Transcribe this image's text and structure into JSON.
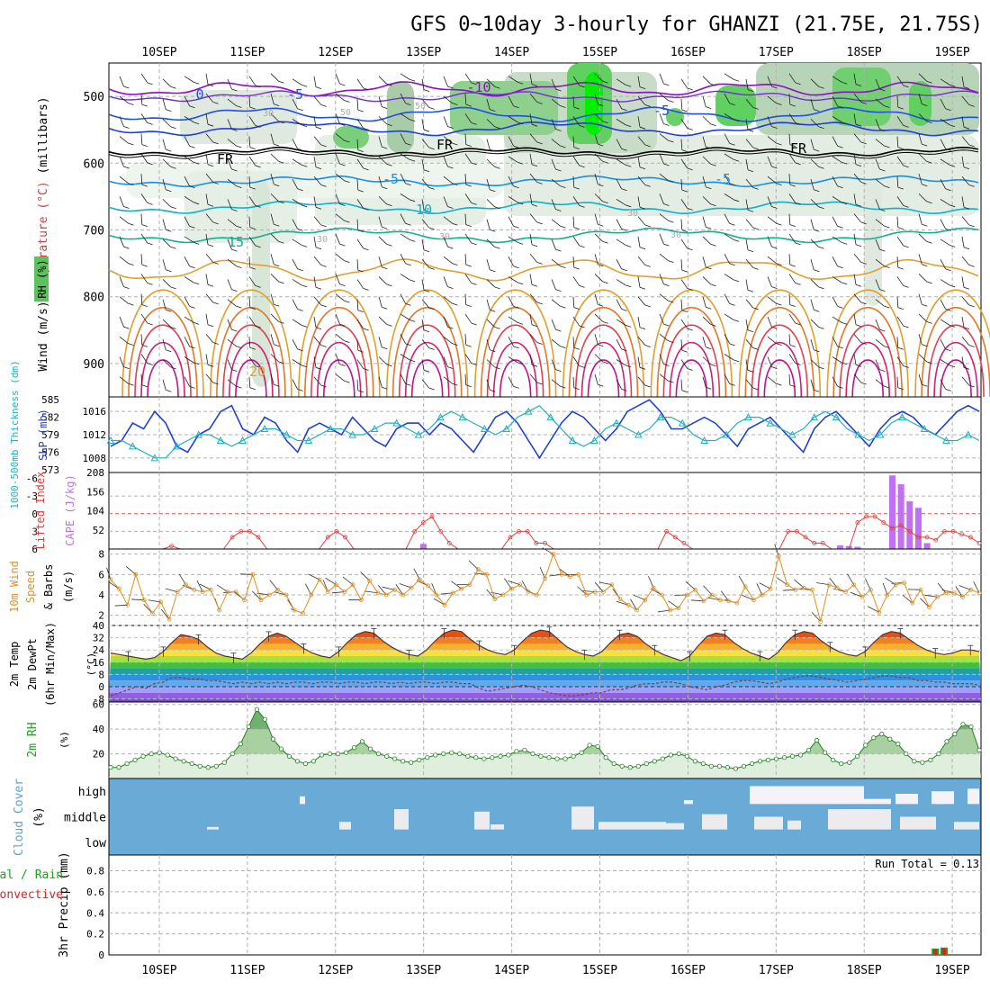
{
  "chart_data": [
    {
      "type": "contour",
      "panel": "upper-air",
      "title": "GFS 0~10day 3-hourly for GHANZI (21.75E, 21.75S)",
      "x_ticks": [
        "10SEP",
        "11SEP",
        "12SEP",
        "13SEP",
        "14SEP",
        "15SEP",
        "16SEP",
        "17SEP",
        "18SEP",
        "19SEP"
      ],
      "ylabel_parts": [
        {
          "text": "Wind (m/s)",
          "color": "#000000"
        },
        {
          "text": "Temperature (°C)",
          "color": "#d04040"
        },
        {
          "text": "(millibars)",
          "color": "#000000"
        }
      ],
      "rh_label": "RH (%)",
      "y_ticks": [
        500,
        600,
        700,
        800,
        900
      ],
      "ylim": [
        450,
        950
      ],
      "contour_labels": [
        "0",
        "-5",
        "-10",
        "-5",
        "FR",
        "FR",
        "FR",
        "-5",
        "-5",
        "10",
        "15",
        "20",
        "30",
        "30",
        "30",
        "30",
        "30",
        "50",
        "50"
      ]
    },
    {
      "type": "line",
      "panel": "thickness-slp",
      "ylabel_left": "1000-500mb Thickness (dm)",
      "ylabel_right": "SLP (mb)",
      "thickness_ticks": [
        585,
        582,
        579,
        576,
        573
      ],
      "slp_ticks": [
        1016,
        1012,
        1008
      ],
      "series": [
        {
          "name": "SLP (mb)",
          "color": "#2040d0",
          "values": [
            1010,
            1011,
            1014,
            1013,
            1016,
            1014,
            1010,
            1009,
            1012,
            1013,
            1016,
            1017,
            1013,
            1012,
            1015,
            1014,
            1011,
            1009,
            1013,
            1014,
            1013,
            1012,
            1015,
            1013,
            1011,
            1010,
            1013,
            1014,
            1014,
            1012,
            1014,
            1013,
            1011,
            1009,
            1012,
            1015,
            1016,
            1014,
            1011,
            1008,
            1011,
            1014,
            1016,
            1015,
            1013,
            1011,
            1013,
            1016,
            1017,
            1018,
            1016,
            1013,
            1013,
            1014,
            1015,
            1014,
            1012,
            1010,
            1013,
            1014,
            1015,
            1013,
            1011,
            1009,
            1013,
            1015,
            1016,
            1014,
            1012,
            1010,
            1013,
            1015,
            1016,
            1015,
            1013,
            1012,
            1014,
            1016,
            1017,
            1016
          ]
        },
        {
          "name": "Thickness (dm)",
          "color": "#20b0c0",
          "values": [
            578,
            578,
            577,
            576,
            575,
            575,
            577,
            578,
            579,
            579,
            578,
            577,
            578,
            579,
            580,
            580,
            579,
            578,
            578,
            579,
            580,
            580,
            579,
            579,
            580,
            581,
            581,
            580,
            579,
            580,
            582,
            583,
            582,
            581,
            580,
            579,
            580,
            582,
            583,
            584,
            582,
            580,
            578,
            577,
            578,
            580,
            581,
            580,
            579,
            580,
            582,
            582,
            581,
            579,
            578,
            578,
            579,
            581,
            582,
            582,
            581,
            580,
            579,
            580,
            582,
            583,
            582,
            580,
            579,
            578,
            579,
            581,
            582,
            581,
            580,
            579,
            578,
            578,
            579,
            578
          ]
        }
      ]
    },
    {
      "type": "bar-line",
      "panel": "lifted-index-cape",
      "ylabel_left": "Lifted Index",
      "ylabel_right": "CAPE (J/kg)",
      "li_ticks": [
        "-6",
        "-3",
        "0",
        "3",
        "6"
      ],
      "cape_ticks": [
        "208",
        "156",
        "104",
        "52"
      ],
      "li_values": [
        6,
        6,
        6,
        6,
        6,
        6,
        6,
        5.5,
        6,
        6,
        6,
        6,
        6,
        6,
        4,
        3,
        3,
        4,
        6,
        6,
        6,
        6,
        6,
        6,
        6,
        4,
        3,
        4,
        6,
        6,
        6,
        6,
        6,
        6,
        6,
        3,
        1.5,
        0.5,
        3,
        5,
        6,
        6,
        6,
        6,
        6,
        6,
        4,
        3,
        3,
        5,
        5,
        6,
        6,
        6,
        6,
        6,
        6,
        6,
        6,
        6,
        6,
        6,
        6,
        6,
        3,
        4,
        5,
        6,
        6,
        6,
        6,
        6,
        6,
        6,
        6,
        6,
        6,
        6,
        3,
        3,
        4,
        5,
        5,
        6,
        6,
        6,
        1.5,
        0.5,
        0.5,
        1.5,
        2.5,
        2,
        3,
        4,
        4,
        4.5,
        3,
        3,
        3.5,
        4,
        5
      ],
      "cape_bars": [
        {
          "index": 36,
          "value": 14
        },
        {
          "index": 84,
          "value": 10
        },
        {
          "index": 85,
          "value": 8
        },
        {
          "index": 86,
          "value": 6
        },
        {
          "index": 90,
          "value": 200
        },
        {
          "index": 91,
          "value": 176
        },
        {
          "index": 92,
          "value": 130
        },
        {
          "index": 93,
          "value": 112
        },
        {
          "index": 94,
          "value": 16
        }
      ]
    },
    {
      "type": "line",
      "panel": "wind-10m",
      "ylabel": [
        "10m Wind",
        "Speed",
        "& Barbs",
        "(m/s)"
      ],
      "y_ticks": [
        8,
        6,
        4,
        2
      ],
      "ylim": [
        1,
        8.5
      ],
      "values": [
        5.5,
        4.6,
        3,
        6,
        3.5,
        2.2,
        3.3,
        1.6,
        4.3,
        5,
        4.5,
        4.3,
        4.5,
        2.5,
        4.3,
        4.3,
        3.5,
        6,
        3.5,
        4,
        4.5,
        4,
        2.5,
        2.2,
        4,
        5.5,
        4.3,
        5,
        4.3,
        5,
        3.5,
        5.4,
        4.2,
        4,
        4.5,
        4,
        4.7,
        5.5,
        4.9,
        4,
        3,
        4.2,
        4.6,
        5,
        6.5,
        6,
        3.6,
        4,
        4.6,
        5,
        4.3,
        4,
        5.6,
        8,
        6,
        5.8,
        6,
        4,
        4.3,
        4.3,
        5,
        3.6,
        3,
        2.5,
        3.5,
        4.7,
        4,
        2.5,
        2.7,
        4,
        4.5,
        3.4,
        4,
        3.5,
        3.4,
        3.2,
        4.8,
        3.5,
        4,
        4.6,
        7.8,
        5,
        4.5,
        4.7,
        4.5,
        1.4,
        5,
        4.7,
        4.3,
        5,
        3.8,
        4.5,
        2.3,
        4,
        5,
        5.2,
        3.2,
        4.5,
        2.8,
        3.8,
        4.2,
        4.2,
        3.8,
        4.5,
        4.2
      ]
    },
    {
      "type": "area",
      "panel": "temp-2m",
      "ylabel": [
        "2m Temp",
        "2m DewPt",
        "(6hr Min/Max)"
      ],
      "unit": "(°C)",
      "y_ticks": [
        40,
        32,
        24,
        16,
        8,
        0,
        -8
      ],
      "ylim": [
        -10,
        40
      ],
      "temp_values": [
        22,
        21,
        20,
        19,
        18,
        19,
        23,
        29,
        34,
        33,
        31,
        26,
        22,
        20,
        19,
        18,
        22,
        28,
        33,
        35,
        33,
        29,
        25,
        22,
        20,
        19,
        23,
        29,
        34,
        36,
        35,
        30,
        26,
        23,
        21,
        20,
        24,
        30,
        35,
        37,
        36,
        31,
        27,
        24,
        22,
        21,
        24,
        30,
        35,
        37,
        36,
        31,
        26,
        23,
        21,
        20,
        23,
        29,
        34,
        35,
        33,
        28,
        24,
        21,
        19,
        17,
        20,
        27,
        33,
        35,
        34,
        29,
        25,
        22,
        20,
        18,
        22,
        29,
        34,
        36,
        35,
        30,
        26,
        23,
        21,
        20,
        23,
        29,
        34,
        36,
        35,
        31,
        27,
        24,
        22,
        21,
        22,
        24,
        24,
        23
      ],
      "dewpt_values": [
        -6,
        -4,
        -2,
        0,
        -1,
        2,
        3,
        6,
        6,
        5,
        5,
        4,
        4,
        3,
        2,
        3,
        2,
        3,
        2,
        3,
        2,
        3,
        3,
        2,
        3,
        3,
        2,
        3,
        3,
        2,
        3,
        3,
        2,
        3,
        2,
        3,
        3,
        2,
        3,
        3,
        2,
        2,
        -1,
        -3,
        -2,
        -1,
        0,
        1,
        0,
        -2,
        -4,
        -5,
        -6,
        -6,
        -5,
        -4,
        -4,
        -2,
        -2,
        -1,
        1,
        2,
        2,
        3,
        3,
        2,
        0,
        -1,
        -2,
        0,
        1,
        3,
        4,
        4,
        3,
        2,
        3,
        5,
        6,
        7,
        7,
        6,
        5,
        4,
        3,
        4,
        5,
        6,
        7,
        7,
        6,
        6,
        4,
        4,
        3,
        3,
        2,
        2,
        2,
        1
      ]
    },
    {
      "type": "area",
      "panel": "rh-2m",
      "ylabel": "2m RH",
      "unit": "(%)",
      "y_ticks": [
        60,
        40,
        20
      ],
      "ylim": [
        0,
        62
      ],
      "values": [
        9,
        9,
        12,
        15,
        18,
        20,
        21,
        19,
        16,
        14,
        12,
        10,
        9,
        10,
        13,
        20,
        28,
        42,
        56,
        48,
        32,
        24,
        18,
        14,
        12,
        14,
        19,
        20,
        20,
        21,
        25,
        30,
        24,
        20,
        18,
        16,
        14,
        13,
        15,
        17,
        19,
        20,
        21,
        20,
        18,
        17,
        16,
        17,
        18,
        19,
        22,
        23,
        20,
        18,
        17,
        16,
        16,
        18,
        21,
        27,
        26,
        17,
        12,
        10,
        9,
        10,
        12,
        14,
        16,
        19,
        20,
        18,
        14,
        12,
        10,
        10,
        9,
        8,
        10,
        12,
        14,
        15,
        16,
        17,
        18,
        19,
        23,
        31,
        21,
        15,
        12,
        13,
        18,
        27,
        33,
        36,
        32,
        28,
        20,
        14,
        13,
        15,
        20,
        30,
        36,
        44,
        42,
        23
      ]
    },
    {
      "type": "heatmap",
      "panel": "cloud-cover",
      "ylabel": [
        "Cloud Cover",
        "(%)"
      ],
      "levels": [
        "high",
        "middle",
        "low"
      ]
    },
    {
      "type": "bar",
      "panel": "precip-3hr",
      "ylabel": "3hr Precip (mm)",
      "legend": [
        {
          "text": "Total / Rain",
          "color": "#20a020"
        },
        {
          "text": "Convective",
          "color": "#e02020"
        }
      ],
      "run_total_label": "Run Total = 0.13",
      "y_ticks": [
        "0.8",
        "0.6",
        "0.4",
        "0.2",
        "0"
      ],
      "ylim": [
        0,
        0.95
      ],
      "bars": [
        {
          "index": 94,
          "value": 0.06
        },
        {
          "index": 95,
          "value": 0.07
        }
      ],
      "x_ticks": [
        "10SEP",
        "11SEP",
        "12SEP",
        "13SEP",
        "14SEP",
        "15SEP",
        "16SEP",
        "17SEP",
        "18SEP",
        "19SEP"
      ]
    }
  ]
}
